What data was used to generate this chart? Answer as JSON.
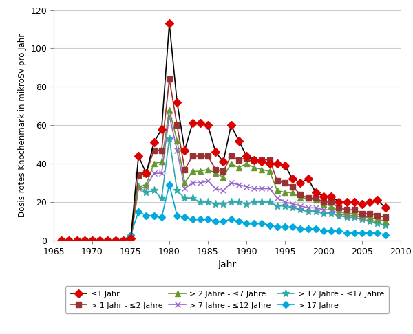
{
  "years": [
    1966,
    1967,
    1968,
    1969,
    1970,
    1971,
    1972,
    1973,
    1974,
    1975,
    1976,
    1977,
    1978,
    1979,
    1980,
    1981,
    1982,
    1983,
    1984,
    1985,
    1986,
    1987,
    1988,
    1989,
    1990,
    1991,
    1992,
    1993,
    1994,
    1995,
    1996,
    1997,
    1998,
    1999,
    2000,
    2001,
    2002,
    2003,
    2004,
    2005,
    2006,
    2007,
    2008
  ],
  "le1": [
    0,
    0,
    0,
    0,
    0,
    0,
    0,
    0,
    0,
    1,
    44,
    35,
    51,
    58,
    113,
    72,
    47,
    61,
    61,
    60,
    46,
    41,
    60,
    52,
    44,
    42,
    41,
    40,
    40,
    39,
    32,
    30,
    32,
    25,
    23,
    23,
    20,
    20,
    20,
    19,
    20,
    21,
    17
  ],
  "le2": [
    0,
    0,
    0,
    0,
    0,
    0,
    0,
    0,
    0,
    1,
    34,
    35,
    47,
    47,
    84,
    60,
    37,
    44,
    44,
    44,
    37,
    36,
    44,
    42,
    43,
    42,
    42,
    42,
    31,
    30,
    28,
    24,
    22,
    22,
    20,
    20,
    17,
    16,
    16,
    14,
    14,
    13,
    12
  ],
  "le7": [
    0,
    0,
    0,
    0,
    0,
    0,
    0,
    0,
    0,
    1,
    28,
    29,
    40,
    41,
    68,
    52,
    30,
    36,
    36,
    37,
    35,
    33,
    40,
    38,
    40,
    38,
    37,
    36,
    26,
    25,
    25,
    22,
    22,
    21,
    19,
    18,
    15,
    14,
    14,
    13,
    12,
    11,
    10
  ],
  "le12": [
    0,
    0,
    0,
    0,
    0,
    0,
    0,
    0,
    0,
    1,
    27,
    28,
    35,
    35,
    65,
    47,
    27,
    30,
    30,
    31,
    27,
    26,
    30,
    29,
    28,
    27,
    27,
    27,
    22,
    20,
    19,
    18,
    17,
    17,
    16,
    16,
    14,
    13,
    13,
    12,
    12,
    11,
    10
  ],
  "le17": [
    0,
    0,
    0,
    0,
    0,
    0,
    0,
    0,
    0,
    2,
    28,
    25,
    26,
    22,
    53,
    26,
    22,
    22,
    20,
    20,
    19,
    19,
    20,
    20,
    19,
    20,
    20,
    20,
    18,
    18,
    17,
    16,
    15,
    15,
    14,
    14,
    13,
    12,
    12,
    11,
    10,
    9,
    8
  ],
  "gt17": [
    0,
    0,
    0,
    0,
    0,
    0,
    0,
    0,
    0,
    3,
    15,
    13,
    13,
    12,
    29,
    13,
    12,
    11,
    11,
    11,
    10,
    10,
    11,
    10,
    9,
    9,
    9,
    8,
    7,
    7,
    7,
    6,
    6,
    6,
    5,
    5,
    5,
    4,
    4,
    4,
    4,
    4,
    3
  ],
  "labels": [
    "≤1 Jahr",
    "> 1 Jahr - ≤2 Jahre",
    "> 2 Jahre - ≤7 Jahre",
    "> 7 Jahre - ≤12 Jahre",
    "> 12 Jahre - ≤17 Jahre",
    "> 17 Jahre"
  ],
  "ylabel": "Dosis rotes Knochenmark in mikroSv pro Jahr",
  "xlabel": "Jahr",
  "ylim": [
    0,
    120
  ],
  "xlim": [
    1965,
    2010
  ],
  "yticks": [
    0,
    20,
    40,
    60,
    80,
    100,
    120
  ],
  "xticks": [
    1965,
    1970,
    1975,
    1980,
    1985,
    1990,
    1995,
    2000,
    2005,
    2010
  ],
  "figsize": [
    6.0,
    4.86
  ],
  "dpi": 100
}
